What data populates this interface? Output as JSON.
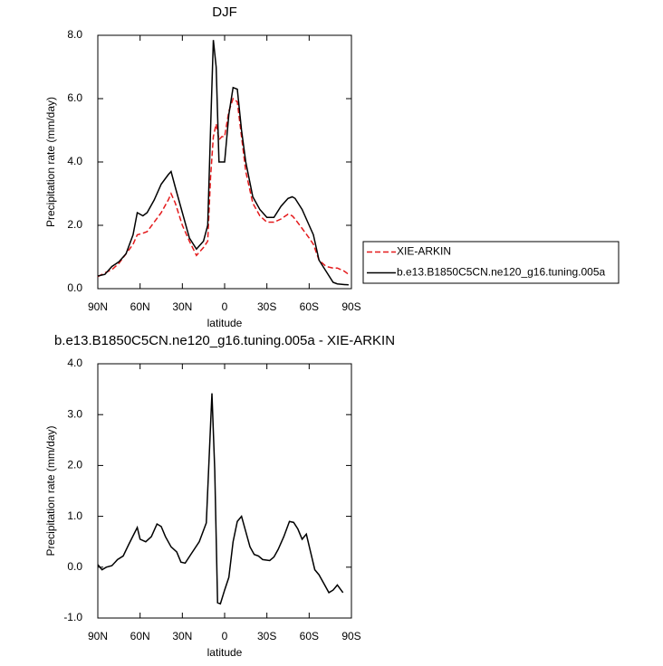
{
  "chart_data": [
    {
      "type": "line",
      "title": "DJF",
      "xlabel": "latitude",
      "ylabel": "Precipitation rate (mm/day)",
      "x": [
        90,
        85,
        80,
        75,
        70,
        65,
        62,
        58,
        55,
        50,
        45,
        40,
        38,
        35,
        30,
        25,
        20,
        15,
        12,
        10,
        8,
        6,
        4,
        2,
        0,
        -3,
        -6,
        -9,
        -12,
        -15,
        -20,
        -25,
        -30,
        -35,
        -40,
        -45,
        -48,
        -50,
        -55,
        -60,
        -63,
        -67,
        -72,
        -77,
        -80,
        -85,
        -88
      ],
      "series": [
        {
          "name": "XIE-ARKIN",
          "color": "#e41a1c",
          "linestyle": "dashed",
          "values": [
            0.38,
            0.5,
            0.6,
            0.8,
            1.1,
            1.4,
            1.7,
            1.75,
            1.8,
            2.1,
            2.4,
            2.8,
            3.0,
            2.7,
            2.0,
            1.5,
            1.05,
            1.3,
            1.5,
            3.5,
            4.8,
            5.2,
            4.7,
            4.8,
            4.8,
            5.6,
            6.0,
            5.9,
            4.8,
            3.7,
            2.7,
            2.3,
            2.1,
            2.1,
            2.2,
            2.35,
            2.3,
            2.2,
            1.9,
            1.6,
            1.4,
            0.9,
            0.7,
            0.65,
            0.65,
            0.55,
            0.45
          ]
        },
        {
          "name": "b.e13.B1850C5CN.ne120_g16.tuning.005a",
          "color": "#000000",
          "linestyle": "solid",
          "values": [
            0.4,
            0.45,
            0.7,
            0.85,
            1.1,
            1.7,
            2.4,
            2.3,
            2.4,
            2.8,
            3.3,
            3.6,
            3.7,
            3.2,
            2.4,
            1.6,
            1.25,
            1.5,
            2.0,
            5.0,
            7.85,
            7.0,
            4.0,
            4.0,
            4.0,
            5.5,
            6.35,
            6.3,
            5.0,
            4.0,
            2.9,
            2.5,
            2.25,
            2.25,
            2.6,
            2.85,
            2.9,
            2.85,
            2.5,
            2.0,
            1.7,
            0.9,
            0.55,
            0.2,
            0.15,
            0.13,
            0.12
          ]
        }
      ],
      "xlim": [
        90,
        -90
      ],
      "xticks": [
        {
          "value": 90,
          "label": "90N"
        },
        {
          "value": 60,
          "label": "60N"
        },
        {
          "value": 30,
          "label": "30N"
        },
        0,
        {
          "value": -30,
          "label": "30S"
        },
        {
          "value": -60,
          "label": "60S"
        },
        {
          "value": -90,
          "label": "90S"
        }
      ],
      "ylim": [
        0,
        8
      ],
      "yticks": [
        {
          "value": 0,
          "label": "0.0"
        },
        {
          "value": 2,
          "label": "2.0"
        },
        {
          "value": 4,
          "label": "4.0"
        },
        {
          "value": 6,
          "label": "6.0"
        },
        {
          "value": 8,
          "label": "8.0"
        }
      ],
      "legend": "right"
    },
    {
      "type": "line",
      "title": "b.e13.B1850C5CN.ne120_g16.tuning.005a - XIE-ARKIN",
      "xlabel": "latitude",
      "ylabel": "Precipitation rate (mm/day)",
      "x": [
        90,
        87,
        84,
        80,
        76,
        72,
        68,
        62,
        60,
        56,
        52,
        48,
        45,
        42,
        38,
        34,
        31,
        28,
        24,
        18,
        13,
        9,
        7,
        5,
        3,
        0,
        -3,
        -6,
        -9,
        -12,
        -15,
        -18,
        -21,
        -24,
        -27,
        -32,
        -35,
        -38,
        -42,
        -46,
        -49,
        -52,
        -55,
        -58,
        -61,
        -64,
        -67,
        -70,
        -74,
        -77,
        -80,
        -84
      ],
      "values": [
        0.05,
        -0.05,
        0,
        0.03,
        0.15,
        0.22,
        0.45,
        0.78,
        0.55,
        0.5,
        0.6,
        0.85,
        0.8,
        0.6,
        0.4,
        0.3,
        0.1,
        0.08,
        0.25,
        0.5,
        0.87,
        3.42,
        1.9,
        -0.7,
        -0.72,
        -0.45,
        -0.2,
        0.5,
        0.9,
        1.0,
        0.7,
        0.4,
        0.25,
        0.22,
        0.15,
        0.13,
        0.2,
        0.35,
        0.6,
        0.9,
        0.88,
        0.75,
        0.55,
        0.65,
        0.3,
        -0.05,
        -0.15,
        -0.3,
        -0.5,
        -0.45,
        -0.35,
        -0.5
      ],
      "color": "#000000",
      "xlim": [
        90,
        -90
      ],
      "xticks": [
        {
          "value": 90,
          "label": "90N"
        },
        {
          "value": 60,
          "label": "60N"
        },
        {
          "value": 30,
          "label": "30N"
        },
        0,
        {
          "value": -30,
          "label": "30S"
        },
        {
          "value": -60,
          "label": "60S"
        },
        {
          "value": -90,
          "label": "90S"
        }
      ],
      "ylim": [
        -1,
        4
      ],
      "yticks": [
        {
          "value": -1,
          "label": "-1.0"
        },
        {
          "value": 0,
          "label": "0.0"
        },
        {
          "value": 1,
          "label": "1.0"
        },
        {
          "value": 2,
          "label": "2.0"
        },
        {
          "value": 3,
          "label": "3.0"
        },
        {
          "value": 4,
          "label": "4.0"
        }
      ]
    }
  ]
}
